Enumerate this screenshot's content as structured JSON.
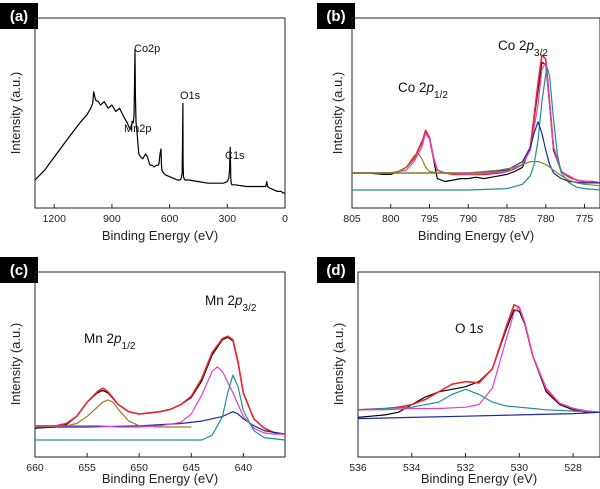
{
  "chart_data": [
    {
      "panel": "(a)",
      "type": "line",
      "xlabel": "Binding Energy (eV)",
      "ylabel": "Intensity (a.u.)",
      "xlim": [
        1300,
        0
      ],
      "xticks": [
        1200,
        900,
        600,
        300,
        0
      ],
      "annotations": [
        {
          "text": "Co2p",
          "x": 780
        },
        {
          "text": "Mn2p",
          "x": 642
        },
        {
          "text": "O1s",
          "x": 530
        },
        {
          "text": "C1s",
          "x": 285
        }
      ],
      "series": [
        {
          "color": "#000000",
          "x": [
            1300,
            1250,
            1200,
            1150,
            1100,
            1060,
            1030,
            1010,
            1000,
            995,
            985,
            970,
            960,
            940,
            920,
            900,
            880,
            860,
            840,
            820,
            810,
            800,
            795,
            790,
            785,
            782,
            780,
            778,
            775,
            772,
            770,
            760,
            750,
            740,
            725,
            715,
            705,
            700,
            690,
            680,
            670,
            660,
            655,
            650,
            645,
            642,
            640,
            636,
            630,
            620,
            600,
            580,
            560,
            545,
            540,
            535,
            533,
            531,
            530,
            528,
            525,
            520,
            500,
            450,
            400,
            350,
            320,
            300,
            292,
            288,
            285,
            282,
            280,
            275,
            260,
            200,
            150,
            120,
            100,
            95,
            90,
            80,
            60,
            40,
            20,
            10,
            0
          ],
          "y": [
            8,
            14,
            22,
            30,
            38,
            44,
            48,
            52,
            55,
            62,
            57,
            56,
            54,
            56,
            52,
            54,
            50,
            52,
            47,
            43,
            40,
            39,
            44,
            43,
            47,
            70,
            88,
            60,
            44,
            40,
            38,
            24,
            22,
            21,
            24,
            22,
            18,
            17,
            17,
            16,
            17,
            17,
            18,
            24,
            27,
            17,
            14,
            13,
            12,
            11,
            10,
            9,
            8,
            8,
            9,
            12,
            30,
            55,
            18,
            10,
            9,
            8,
            8,
            7,
            6,
            6,
            6,
            7,
            9,
            15,
            28,
            9,
            6,
            5,
            5,
            4,
            4,
            4,
            4,
            7,
            4,
            3,
            2,
            1,
            1,
            0,
            0
          ]
        }
      ]
    },
    {
      "panel": "(b)",
      "type": "line",
      "xlabel": "Binding Energy (eV)",
      "ylabel": "Intensity (a.u.)",
      "xlim": [
        805,
        773
      ],
      "xticks": [
        805,
        800,
        795,
        790,
        785,
        780,
        775
      ],
      "annotations": [
        {
          "text": "Co 2p1/2",
          "x": 796.5
        },
        {
          "text": "Co 2p3/2",
          "x": 781.5
        }
      ],
      "series": [
        {
          "color": "#000000",
          "x": [
            805,
            803,
            801,
            800,
            799,
            798,
            797,
            796,
            795.5,
            795,
            794.5,
            794,
            793,
            792,
            791,
            790,
            789,
            788,
            787,
            786,
            785,
            784,
            783,
            782,
            781.5,
            781,
            780.5,
            780,
            779.5,
            779,
            778,
            777,
            776,
            775,
            774,
            773
          ],
          "y": [
            12,
            12,
            11,
            11,
            13,
            16,
            22,
            34,
            40,
            36,
            22,
            8,
            6,
            7,
            8,
            8,
            9,
            8,
            9,
            10,
            11,
            13,
            16,
            30,
            50,
            70,
            90,
            88,
            60,
            28,
            13,
            9,
            7,
            6,
            6,
            5
          ]
        },
        {
          "color": "#e8282f",
          "x": [
            805,
            803,
            801,
            800,
            799,
            798,
            797,
            796,
            795.5,
            795,
            794.5,
            794,
            793,
            792,
            790,
            788,
            786,
            785,
            784,
            783,
            782,
            781.5,
            781,
            780.5,
            780,
            779.5,
            779,
            778,
            777,
            776,
            775,
            774,
            773
          ],
          "y": [
            12,
            12,
            12,
            12,
            13,
            16,
            22,
            33,
            42,
            37,
            23,
            14,
            12,
            11,
            11,
            11,
            12,
            13,
            15,
            18,
            30,
            52,
            75,
            95,
            92,
            62,
            30,
            13,
            9,
            7,
            6,
            6,
            5
          ]
        },
        {
          "color": "#e040c8",
          "x": [
            805,
            800,
            798,
            797,
            796,
            795.5,
            795,
            794.5,
            794,
            793,
            790,
            785,
            783,
            782,
            781,
            780.5,
            780,
            779.5,
            779,
            778,
            776,
            773
          ],
          "y": [
            12,
            12,
            14,
            20,
            30,
            40,
            36,
            22,
            14,
            12,
            11,
            13,
            18,
            28,
            60,
            85,
            90,
            62,
            30,
            13,
            7,
            5
          ]
        },
        {
          "color": "#1f9090",
          "x": [
            805,
            790,
            785,
            783,
            782,
            781.5,
            781,
            780.5,
            780,
            779.8,
            779.5,
            779,
            778.5,
            778,
            777,
            776,
            775,
            773
          ],
          "y": [
            0,
            0,
            1,
            4,
            10,
            18,
            35,
            62,
            82,
            86,
            80,
            50,
            25,
            12,
            5,
            2,
            1,
            0
          ]
        },
        {
          "color": "#1a2aa0",
          "x": [
            805,
            790,
            785,
            783,
            782,
            781.5,
            781,
            780.5,
            780,
            779.5,
            779,
            778,
            777,
            775,
            773
          ],
          "y": [
            12,
            12,
            14,
            20,
            30,
            40,
            48,
            40,
            28,
            18,
            12,
            8,
            6,
            5,
            5
          ]
        },
        {
          "color": "#a07a2a",
          "x": [
            805,
            800,
            799,
            798,
            797.5,
            797,
            796.5,
            796,
            795.5,
            795,
            794,
            793,
            792,
            790
          ],
          "y": [
            12,
            12,
            13,
            16,
            20,
            24,
            26,
            22,
            16,
            13,
            12,
            12,
            12,
            12
          ]
        },
        {
          "color": "#7a8a20",
          "x": [
            805,
            795,
            792,
            790,
            788,
            786,
            784,
            783,
            782,
            781,
            780,
            779,
            778,
            777,
            776,
            775,
            773
          ],
          "y": [
            12,
            12,
            12,
            12,
            13,
            14,
            16,
            18,
            20,
            20,
            18,
            14,
            10,
            7,
            5,
            4,
            3
          ]
        }
      ]
    },
    {
      "panel": "(c)",
      "type": "line",
      "xlabel": "Binding Energy (eV)",
      "ylabel": "Intensity (a.u.)",
      "xlim": [
        660,
        636
      ],
      "xticks": [
        660,
        655,
        650,
        645,
        640
      ],
      "annotations": [
        {
          "text": "Mn 2p1/2",
          "x": 653.5
        },
        {
          "text": "Mn 2p3/2",
          "x": 642
        }
      ],
      "series": [
        {
          "color": "#000000",
          "x": [
            660,
            658,
            657,
            656,
            655,
            654,
            653.5,
            653,
            652,
            651,
            650,
            649,
            648,
            647,
            646,
            645,
            644,
            643,
            642,
            641.5,
            641,
            640.5,
            640,
            639,
            638,
            637,
            636
          ],
          "y": [
            10,
            11,
            13,
            20,
            32,
            40,
            42,
            40,
            30,
            24,
            22,
            23,
            24,
            26,
            30,
            36,
            50,
            72,
            85,
            87,
            84,
            65,
            40,
            18,
            10,
            6,
            5
          ]
        },
        {
          "color": "#e8282f",
          "x": [
            660,
            658,
            657,
            656,
            655,
            654,
            653.5,
            653,
            652,
            651,
            650,
            649,
            648,
            647,
            646,
            645,
            644,
            643,
            642,
            641.5,
            641,
            640.5,
            640,
            639,
            638,
            637,
            636
          ],
          "y": [
            12,
            12,
            14,
            20,
            32,
            41,
            44,
            41,
            30,
            24,
            22,
            23,
            24,
            26,
            30,
            37,
            52,
            74,
            86,
            88,
            85,
            66,
            40,
            18,
            10,
            6,
            5
          ]
        },
        {
          "color": "#1a2aa0",
          "x": [
            660,
            655,
            650,
            646,
            644,
            643,
            642,
            641.5,
            641,
            640.5,
            640,
            639,
            638,
            636
          ],
          "y": [
            11,
            11,
            12,
            14,
            16,
            18,
            20,
            22,
            24,
            22,
            18,
            12,
            8,
            5
          ]
        },
        {
          "color": "#a07a2a",
          "x": [
            660,
            657,
            656,
            655,
            654,
            653.5,
            653,
            652.5,
            652,
            651,
            650,
            648,
            645
          ],
          "y": [
            11,
            12,
            14,
            20,
            28,
            32,
            34,
            32,
            26,
            16,
            12,
            11,
            11
          ]
        },
        {
          "color": "#e040c8",
          "x": [
            660,
            656,
            654,
            652,
            650,
            648,
            646,
            645,
            644,
            643,
            642.5,
            642,
            641,
            640,
            639,
            638,
            637,
            636
          ],
          "y": [
            12,
            12,
            12,
            11,
            11,
            12,
            15,
            22,
            38,
            58,
            62,
            58,
            40,
            20,
            10,
            6,
            5,
            5
          ]
        },
        {
          "color": "#1f9090",
          "x": [
            660,
            644,
            643,
            642,
            641.5,
            641,
            640.5,
            640,
            639,
            638,
            636
          ],
          "y": [
            0,
            0,
            4,
            20,
            40,
            55,
            45,
            25,
            8,
            2,
            0
          ]
        }
      ]
    },
    {
      "panel": "(d)",
      "type": "line",
      "xlabel": "Binding Energy (eV)",
      "ylabel": "Intensity (a.u.)",
      "xlim": [
        536,
        527
      ],
      "xticks": [
        536,
        534,
        532,
        530,
        528
      ],
      "annotations": [
        {
          "text": "O 1s",
          "x": 531.2
        }
      ],
      "series": [
        {
          "color": "#000000",
          "x": [
            536,
            535,
            534.5,
            534,
            533.5,
            533,
            532.5,
            532,
            531.5,
            531,
            530.5,
            530.2,
            530,
            529.8,
            529.5,
            529,
            528.5,
            528,
            527.5,
            527
          ],
          "y": [
            2,
            4,
            6,
            12,
            18,
            22,
            24,
            26,
            30,
            40,
            70,
            86,
            85,
            75,
            50,
            22,
            12,
            8,
            6,
            6
          ]
        },
        {
          "color": "#e8282f",
          "x": [
            536,
            535,
            534.5,
            534,
            533.5,
            533,
            532.5,
            532,
            531.5,
            531,
            530.5,
            530.2,
            530,
            529.8,
            529.5,
            529,
            528.5,
            528,
            527.5,
            527
          ],
          "y": [
            8,
            9,
            10,
            12,
            16,
            22,
            28,
            30,
            29,
            40,
            72,
            90,
            88,
            76,
            50,
            24,
            13,
            9,
            7,
            6
          ]
        },
        {
          "color": "#e040c8",
          "x": [
            536,
            535,
            534,
            533,
            532,
            531.5,
            531,
            530.5,
            530.2,
            530,
            529.8,
            529.5,
            529,
            528.5,
            528,
            527.5,
            527
          ],
          "y": [
            8,
            8,
            9,
            9,
            10,
            12,
            25,
            62,
            84,
            88,
            76,
            50,
            25,
            13,
            9,
            7,
            6
          ]
        },
        {
          "color": "#1f9090",
          "x": [
            536,
            534,
            533,
            532.5,
            532,
            531.5,
            531,
            530.5,
            530,
            529.5,
            529,
            528,
            527
          ],
          "y": [
            8,
            10,
            14,
            20,
            24,
            20,
            14,
            11,
            10,
            9,
            8,
            7,
            6
          ]
        },
        {
          "color": "#1a2aa0",
          "x": [
            536,
            534,
            532,
            530,
            528,
            527
          ],
          "y": [
            1,
            2,
            3,
            4,
            5,
            6
          ]
        }
      ]
    }
  ]
}
